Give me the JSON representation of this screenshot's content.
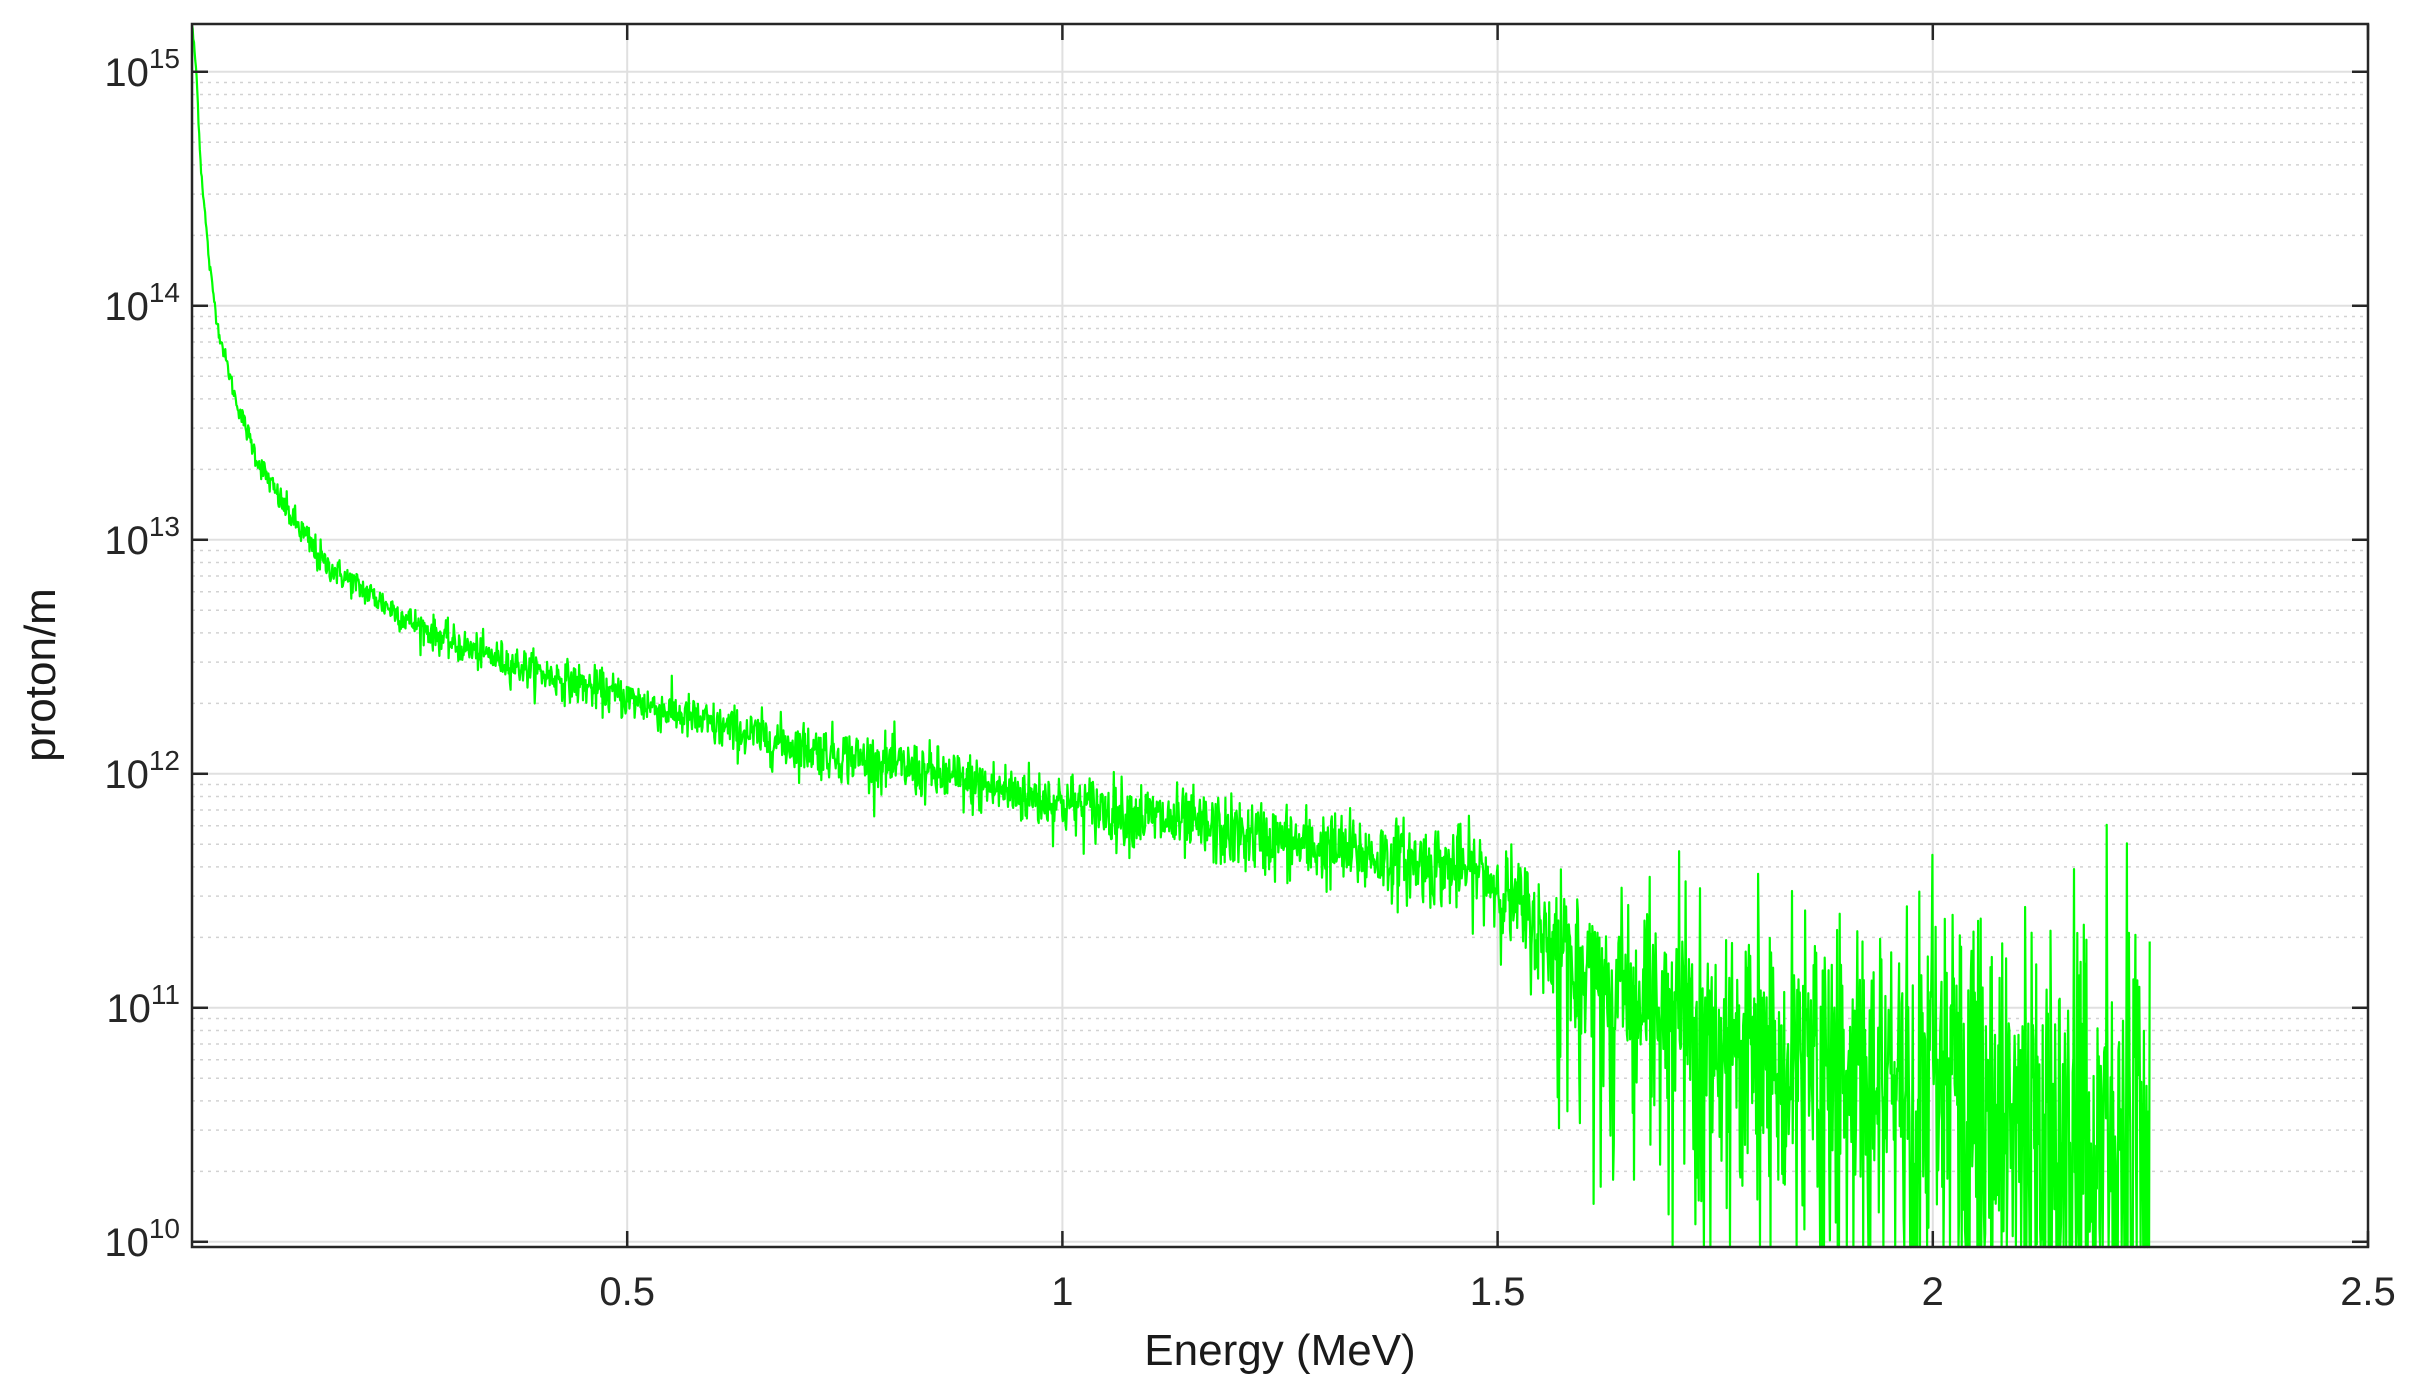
{
  "chart_data": {
    "type": "line",
    "xlabel": "Energy (MeV)",
    "ylabel": "proton/m",
    "xlim": [
      0,
      2.5
    ],
    "ylim": [
      9500000000,
      1600000000000000.0
    ],
    "yscale": "log",
    "grid": true,
    "minor_grid_y": true,
    "x_ticks": [
      0.5,
      1,
      1.5,
      2,
      2.5
    ],
    "x_tick_labels": [
      "0.5",
      "1",
      "1.5",
      "2",
      "2.5"
    ],
    "y_ticks": [
      10000000000.0,
      100000000000.0,
      1000000000000.0,
      10000000000000.0,
      100000000000000.0,
      1000000000000000.0
    ],
    "y_tick_labels": [
      {
        "base": "10",
        "exp": "10"
      },
      {
        "base": "10",
        "exp": "11"
      },
      {
        "base": "10",
        "exp": "12"
      },
      {
        "base": "10",
        "exp": "13"
      },
      {
        "base": "10",
        "exp": "14"
      },
      {
        "base": "10",
        "exp": "15"
      }
    ],
    "series": [
      {
        "color": "#00ff00",
        "style": "noisy",
        "x": [
          0.0,
          0.005,
          0.01,
          0.02,
          0.03,
          0.05,
          0.075,
          0.1,
          0.15,
          0.2,
          0.25,
          0.3,
          0.4,
          0.5,
          0.6,
          0.7,
          0.8,
          0.9,
          1.0,
          1.1,
          1.2,
          1.3,
          1.4,
          1.48,
          1.5,
          1.55,
          1.6,
          1.7,
          1.8,
          1.9,
          2.0,
          2.1,
          2.2,
          2.25
        ],
        "y": [
          1600000000000000.0,
          1000000000000000.0,
          400000000000000.0,
          150000000000000.0,
          80000000000000.0,
          40000000000000.0,
          22000000000000.0,
          15000000000000.0,
          8000000000000.0,
          6000000000000.0,
          4500000000000.0,
          3600000000000.0,
          2700000000000.0,
          2100000000000.0,
          1600000000000.0,
          1300000000000.0,
          1100000000000.0,
          900000000000.0,
          750000000000.0,
          650000000000.0,
          550000000000.0,
          480000000000.0,
          420000000000.0,
          380000000000.0,
          330000000000.0,
          210000000000.0,
          150000000000.0,
          100000000000.0,
          70000000000.0,
          55000000000.0,
          45000000000.0,
          38000000000.0,
          35000000000.0,
          35000000000.0
        ]
      }
    ]
  },
  "colors": {
    "line": "#00ff00",
    "axes": "#262626",
    "major_grid": "#e0e0e0",
    "minor_grid": "#d2d2d2",
    "background": "#ffffff"
  }
}
